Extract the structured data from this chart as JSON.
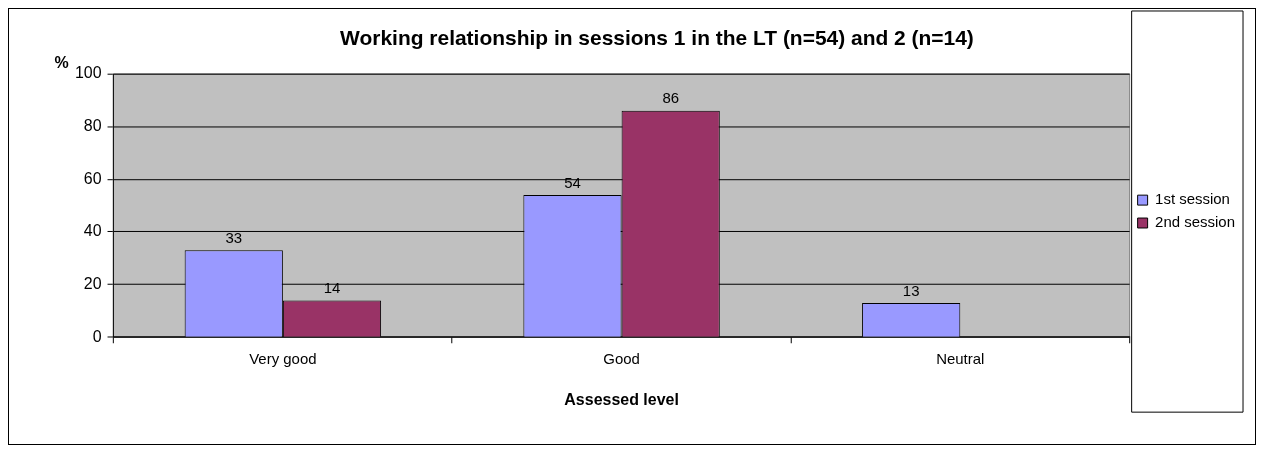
{
  "chart_data": {
    "type": "bar",
    "title": "Working relationship in sessions 1 in the LT (n=54) and 2 (n=14)",
    "xlabel": "Assessed level",
    "ylabel": "%",
    "categories": [
      "Very good",
      "Good",
      "Neutral"
    ],
    "series": [
      {
        "name": "1st session",
        "color": "#9999ff",
        "values": [
          33,
          54,
          13
        ]
      },
      {
        "name": "2nd session",
        "color": "#993366",
        "values": [
          14,
          86,
          null
        ]
      }
    ],
    "ylim": [
      0,
      100
    ],
    "yticks": [
      0,
      20,
      40,
      60,
      80,
      100
    ],
    "grid": "y",
    "legend": "right",
    "data_labels": true
  }
}
